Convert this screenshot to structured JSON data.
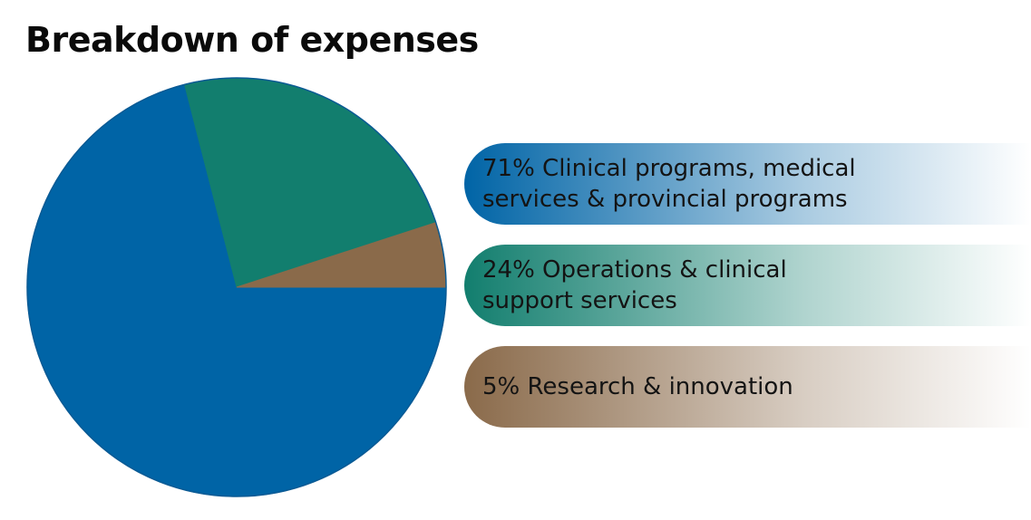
{
  "title": "Breakdown of expenses",
  "chart_data": {
    "type": "pie",
    "title": "Breakdown of expenses",
    "slices": [
      {
        "label": "71% Clinical programs, medical\nservices & provincial programs",
        "value": 71,
        "color": "#0064a6"
      },
      {
        "label": "24% Operations & clinical\nsupport services",
        "value": 24,
        "color": "#127e6e"
      },
      {
        "label": "5% Research & innovation",
        "value": 5,
        "color": "#8a6a4a"
      }
    ],
    "legend_position": "right"
  }
}
